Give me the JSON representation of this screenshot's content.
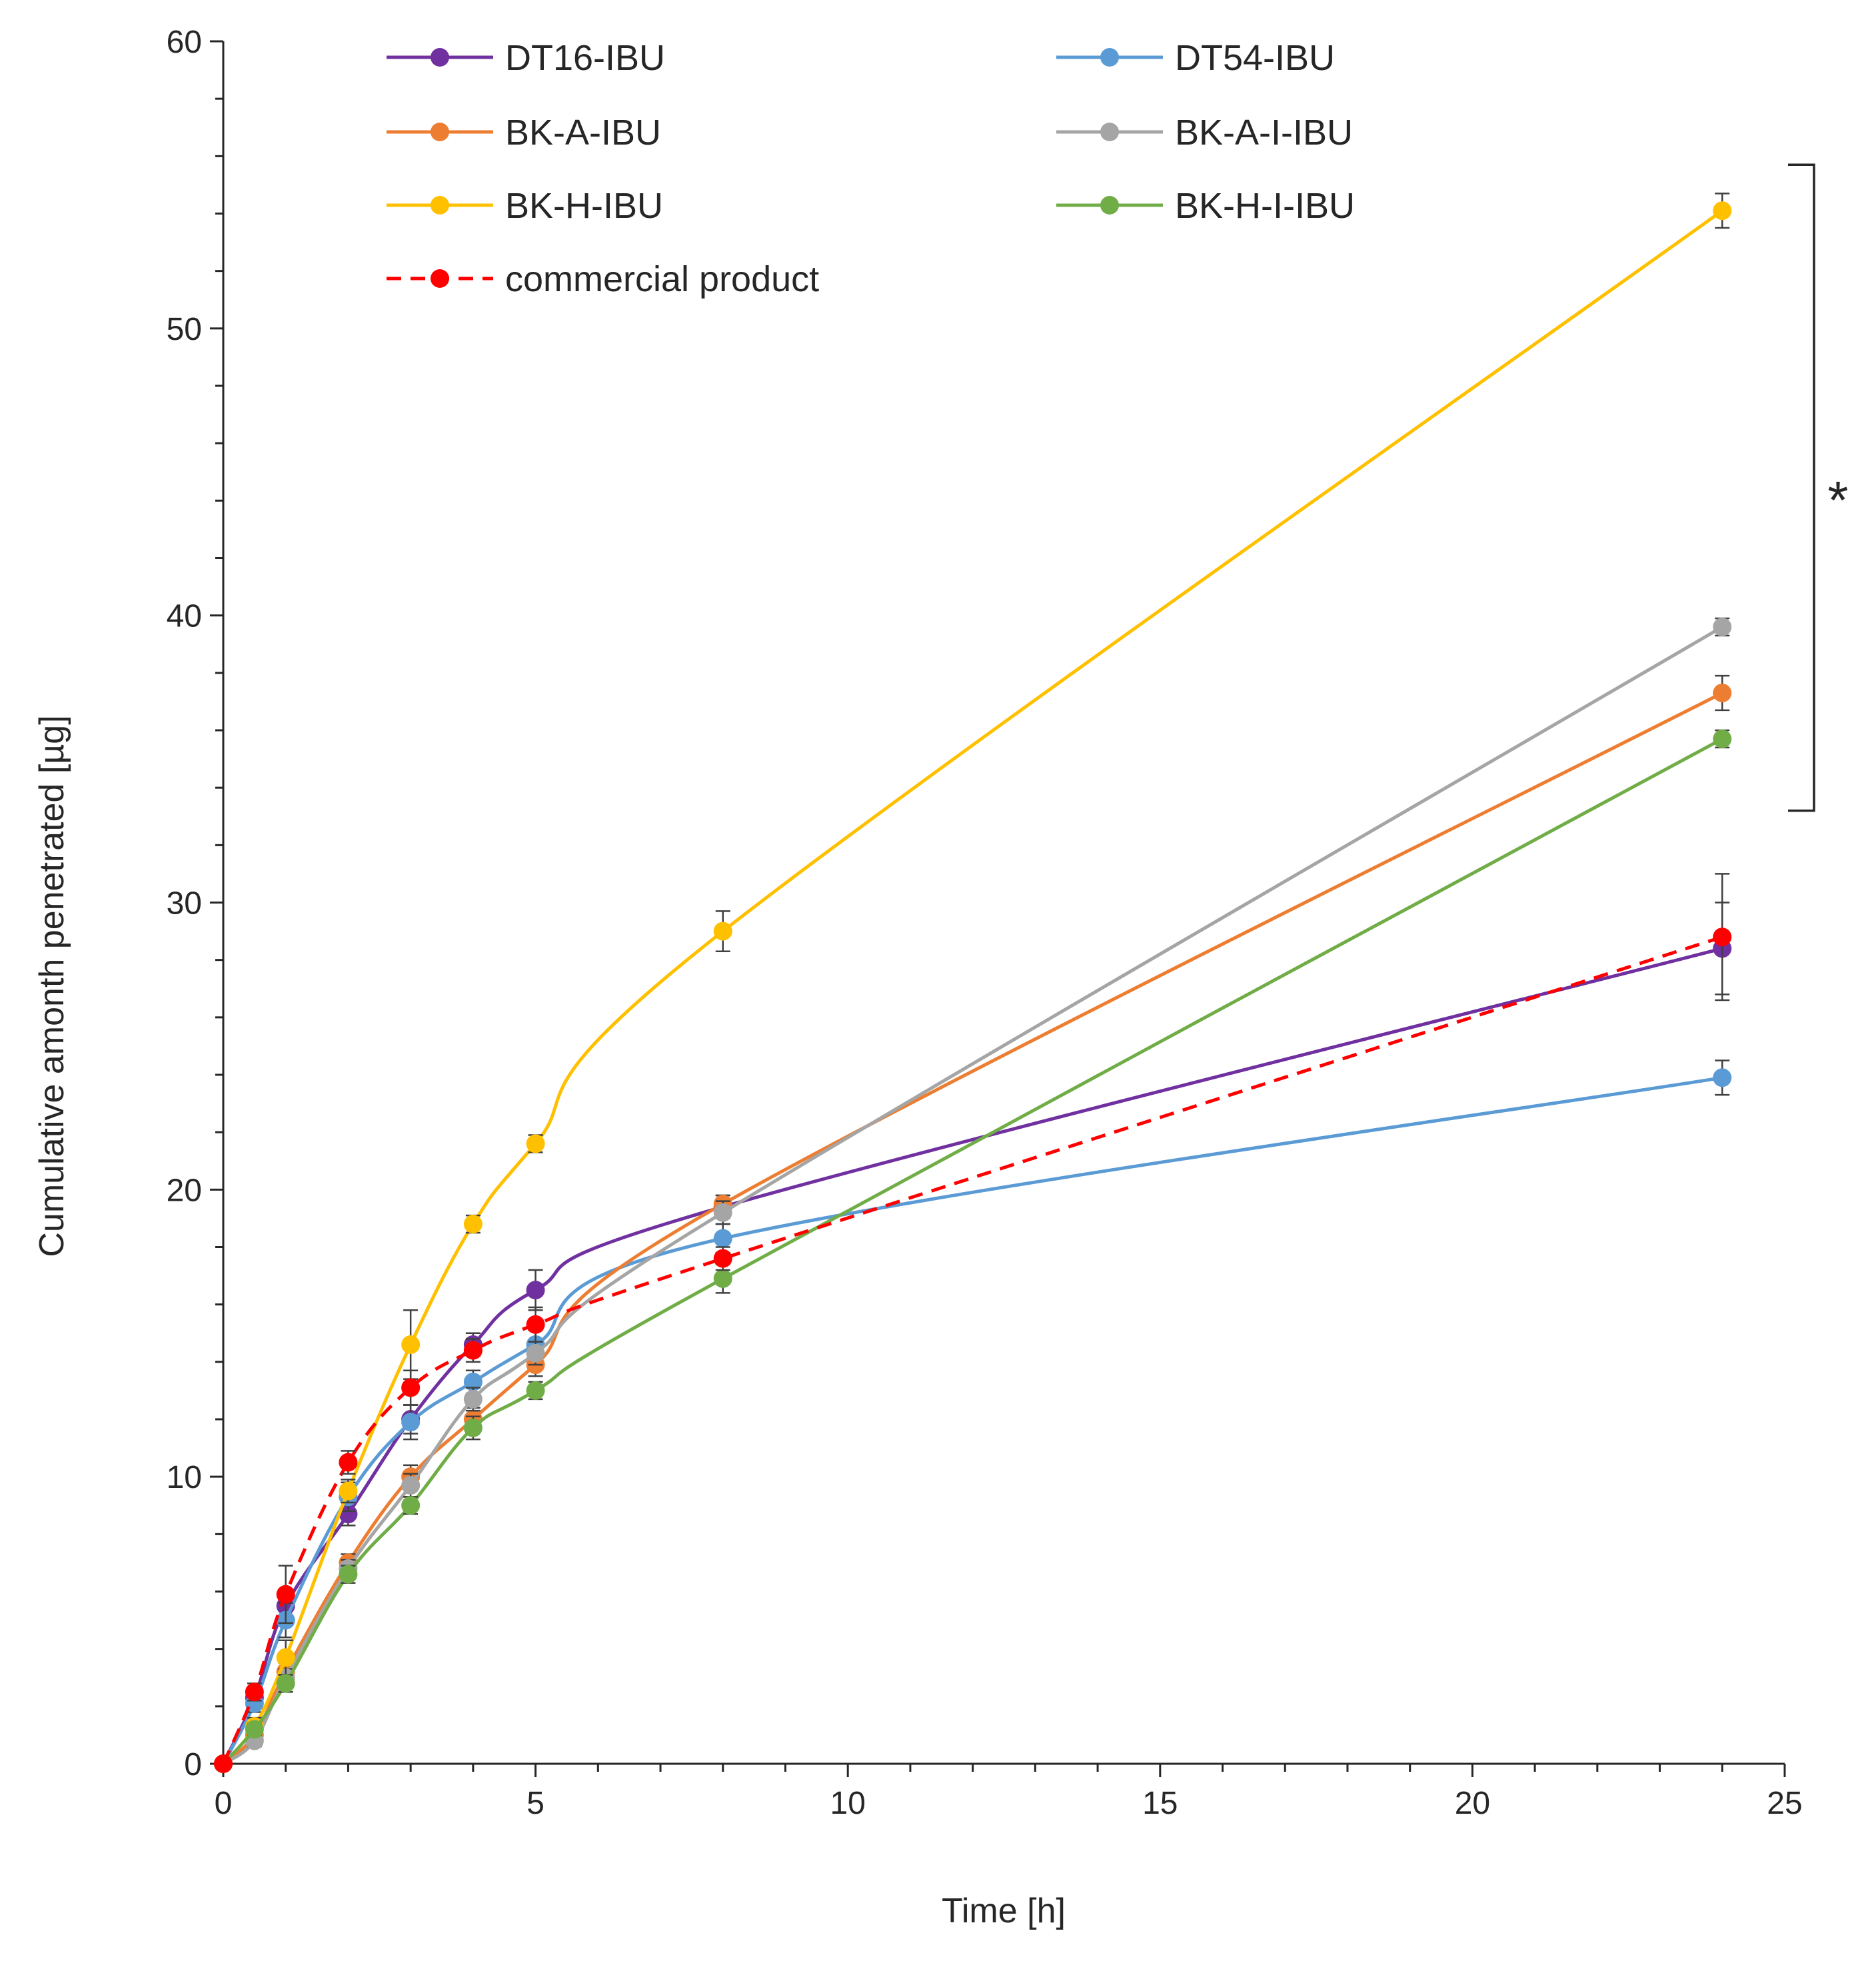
{
  "chart_data": {
    "type": "line",
    "title": "",
    "xlabel": "Time [h]",
    "ylabel": "Cumulative amonth penetrated [µg]",
    "xlim": [
      0,
      25
    ],
    "ylim": [
      0,
      60
    ],
    "x_major_ticks": [
      0,
      5,
      10,
      15,
      20,
      25
    ],
    "y_major_ticks": [
      0,
      10,
      20,
      30,
      40,
      50,
      60
    ],
    "x_tick_labels": [
      "0",
      "5",
      "10",
      "15",
      "20",
      "25"
    ],
    "y_tick_labels": [
      "0",
      "10",
      "20",
      "30",
      "40",
      "50",
      "60"
    ],
    "x_minor_step": 1,
    "y_minor_step": 2,
    "grid": false,
    "legend_position": "top",
    "x": [
      0,
      0.5,
      1,
      2,
      3,
      4,
      5,
      8,
      24
    ],
    "series": [
      {
        "name": "DT16-IBU",
        "color": "#7030A0",
        "dashed": false,
        "values": [
          0,
          2.3,
          5.5,
          8.7,
          12.0,
          14.6,
          16.5,
          19.4,
          28.4
        ],
        "errors": [
          0,
          0.3,
          0.5,
          0.4,
          0.5,
          0.4,
          0.7,
          0.4,
          1.6
        ]
      },
      {
        "name": "DT54-IBU",
        "color": "#5B9BD5",
        "dashed": false,
        "values": [
          0,
          2.1,
          5.0,
          9.3,
          11.9,
          13.3,
          14.6,
          18.3,
          23.9
        ],
        "errors": [
          0,
          0.3,
          0.6,
          0.5,
          0.6,
          0.4,
          0.5,
          0.5,
          0.6
        ]
      },
      {
        "name": "BK-A-IBU",
        "color": "#ED7D31",
        "dashed": false,
        "values": [
          0,
          1.0,
          3.2,
          7.0,
          10.0,
          12.0,
          13.9,
          19.5,
          37.3
        ],
        "errors": [
          0,
          0.2,
          0.3,
          0.3,
          0.4,
          0.4,
          0.4,
          0.3,
          0.6
        ]
      },
      {
        "name": "BK-A-I-IBU",
        "color": "#A5A5A5",
        "dashed": false,
        "values": [
          0,
          0.8,
          3.0,
          6.8,
          9.7,
          12.7,
          14.3,
          19.2,
          39.6
        ],
        "errors": [
          0,
          0.2,
          0.3,
          0.3,
          0.4,
          0.4,
          0.4,
          0.4,
          0.3
        ]
      },
      {
        "name": "BK-H-IBU",
        "color": "#FFC000",
        "dashed": false,
        "values": [
          0,
          1.3,
          3.7,
          9.5,
          14.6,
          18.8,
          21.6,
          29.0,
          54.1
        ],
        "errors": [
          0,
          0.3,
          0.6,
          0.4,
          1.2,
          0.3,
          0.3,
          0.7,
          0.6
        ]
      },
      {
        "name": "BK-H-I-IBU",
        "color": "#70AD47",
        "dashed": false,
        "values": [
          0,
          1.2,
          2.8,
          6.6,
          9.0,
          11.7,
          13.0,
          16.9,
          35.7
        ],
        "errors": [
          0,
          0.2,
          0.3,
          0.3,
          0.3,
          0.4,
          0.3,
          0.5,
          0.3
        ]
      },
      {
        "name": "commercial product",
        "color": "#FF0000",
        "dashed": true,
        "values": [
          0,
          2.5,
          5.9,
          10.5,
          13.1,
          14.4,
          15.3,
          17.6,
          28.8
        ],
        "errors": [
          0,
          0.3,
          1.0,
          0.4,
          0.6,
          0.4,
          0.6,
          0.4,
          2.2
        ]
      }
    ],
    "annotation": {
      "text": "*",
      "bracket_y_range": [
        33.2,
        55.7
      ]
    }
  }
}
